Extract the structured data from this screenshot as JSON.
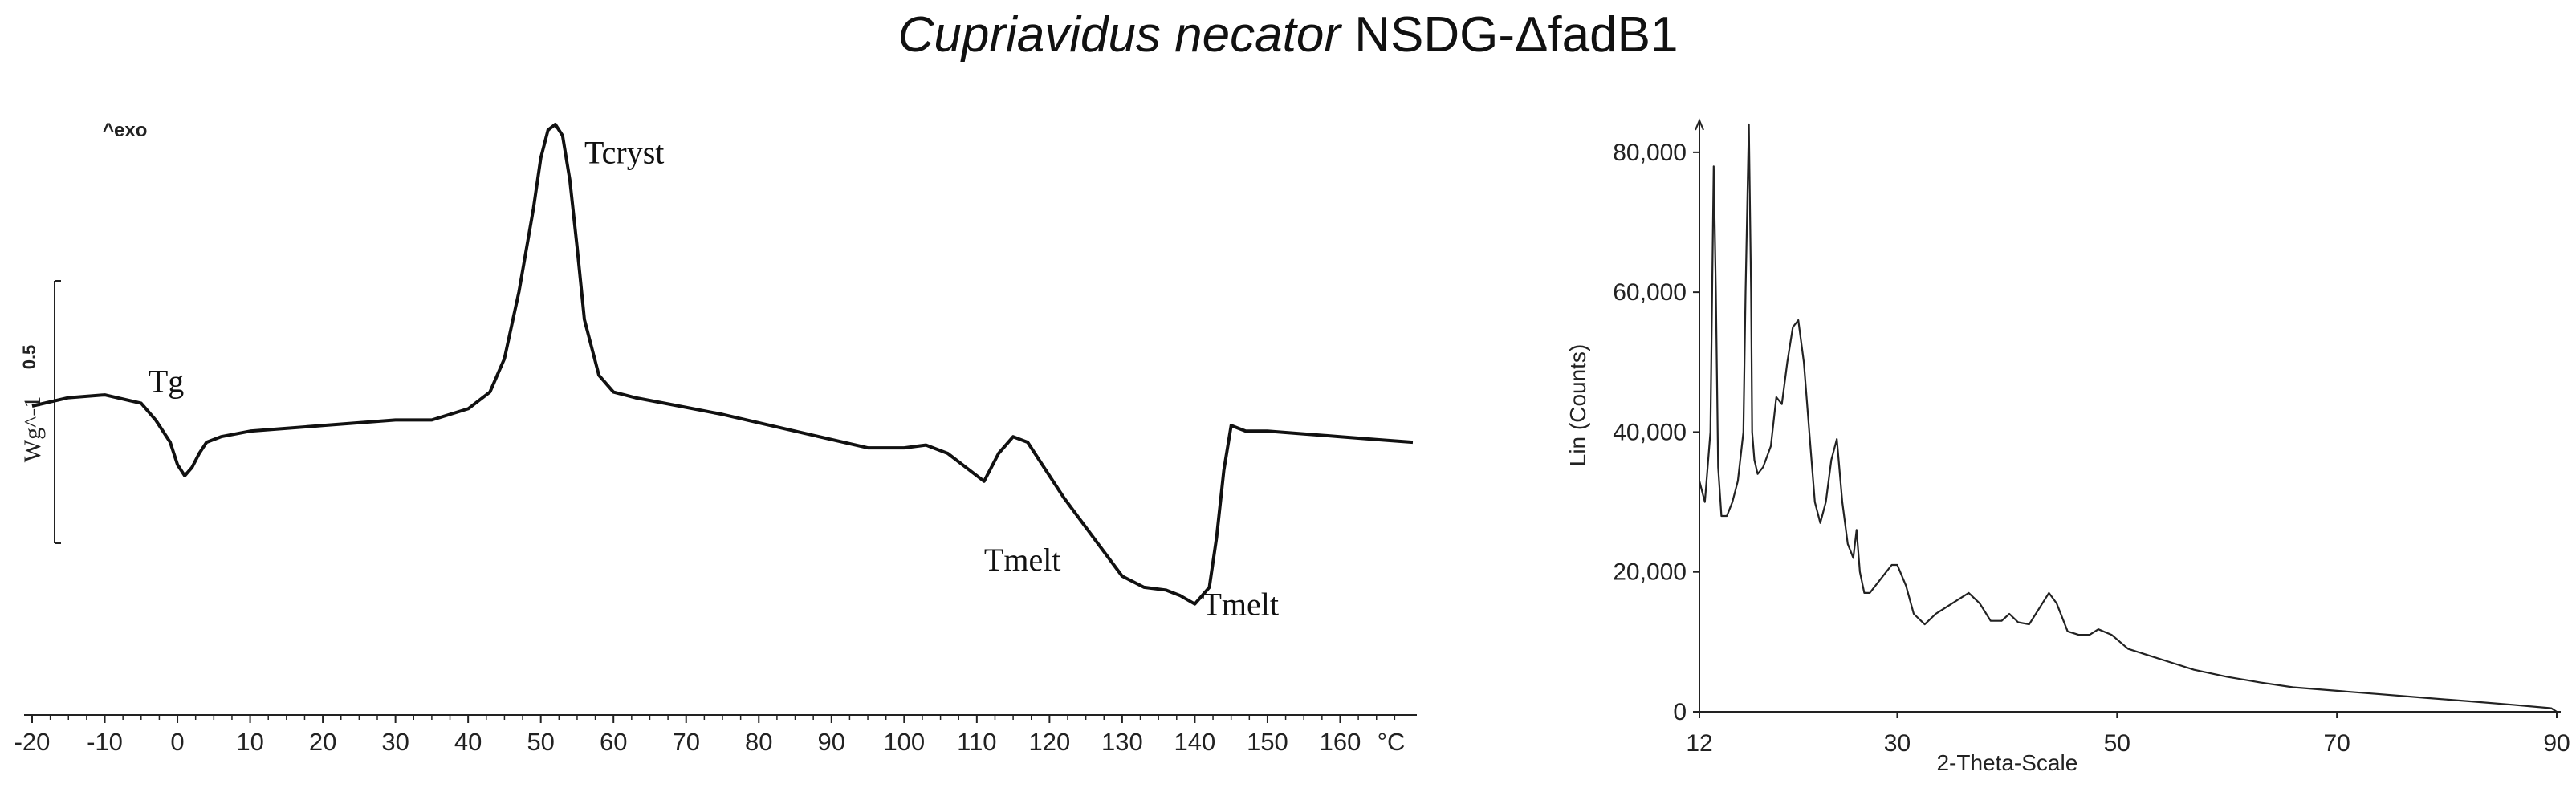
{
  "title": {
    "italic": "Cupriavidus necator",
    "rest": " NSDG-ΔfadB1"
  },
  "chart_data": [
    {
      "type": "line",
      "xlabel": "°C",
      "x_ticks": [
        -20,
        -10,
        0,
        10,
        20,
        30,
        40,
        50,
        60,
        70,
        80,
        90,
        100,
        110,
        120,
        130,
        140,
        150,
        160
      ],
      "xlim": [
        -20,
        170
      ],
      "ylabel": "Wg^-1",
      "scale_label": "0.5",
      "exo_label": "^exo",
      "annotations": [
        {
          "text": "Tg",
          "x": -4,
          "y": 0.52
        },
        {
          "text": "Tcryst",
          "x": 56,
          "y": 0.93
        },
        {
          "text": "Tmelt",
          "x": 111,
          "y": 0.2
        },
        {
          "text": "Tmelt",
          "x": 141,
          "y": 0.12
        }
      ],
      "series": [
        {
          "x": [
            -20,
            -15,
            -10,
            -5,
            -3,
            -1,
            0,
            1,
            2,
            3,
            4,
            6,
            10,
            20,
            30,
            35,
            40,
            43,
            45,
            47,
            49,
            50,
            51,
            52,
            53,
            54,
            55,
            56,
            58,
            60,
            63,
            67,
            75,
            85,
            95,
            98,
            100,
            103,
            106,
            109,
            111,
            113,
            115,
            117,
            119,
            122,
            126,
            130,
            133,
            136,
            138,
            140,
            142,
            143,
            144,
            145,
            146,
            147,
            150,
            155,
            160,
            165,
            170
          ],
          "y": [
            0.495,
            0.51,
            0.515,
            0.5,
            0.47,
            0.43,
            0.39,
            0.37,
            0.385,
            0.41,
            0.43,
            0.44,
            0.45,
            0.46,
            0.47,
            0.47,
            0.49,
            0.52,
            0.58,
            0.7,
            0.85,
            0.94,
            0.99,
            1.0,
            0.98,
            0.9,
            0.78,
            0.65,
            0.55,
            0.52,
            0.51,
            0.5,
            0.48,
            0.45,
            0.42,
            0.42,
            0.42,
            0.425,
            0.41,
            0.38,
            0.36,
            0.41,
            0.44,
            0.43,
            0.39,
            0.33,
            0.26,
            0.19,
            0.17,
            0.165,
            0.155,
            0.14,
            0.17,
            0.26,
            0.38,
            0.46,
            0.455,
            0.45,
            0.45,
            0.445,
            0.44,
            0.435,
            0.43
          ]
        }
      ]
    },
    {
      "type": "line",
      "xlabel": "2-Theta-Scale",
      "ylabel": "Lin (Counts)",
      "x_ticks": [
        12,
        30,
        50,
        70,
        90
      ],
      "y_ticks": [
        0,
        20000,
        40000,
        60000,
        80000
      ],
      "y_tick_labels": [
        "0",
        "20,000",
        "40,000",
        "60,000",
        "80,000"
      ],
      "xlim": [
        12,
        90
      ],
      "ylim": [
        0,
        84000
      ],
      "series": [
        {
          "x": [
            12,
            12.5,
            13,
            13.3,
            13.5,
            13.7,
            14.0,
            14.5,
            15.0,
            15.5,
            16.0,
            16.2,
            16.5,
            16.7,
            16.8,
            17.0,
            17.3,
            17.8,
            18.5,
            19.0,
            19.5,
            20.0,
            20.5,
            21.0,
            21.5,
            22.0,
            22.5,
            23.0,
            23.5,
            24.0,
            24.5,
            25.0,
            25.5,
            26.0,
            26.3,
            26.6,
            27.0,
            27.5,
            28.5,
            29.5,
            30.0,
            30.8,
            31.5,
            32.5,
            33.5,
            34.5,
            35.5,
            36.5,
            37.5,
            38.5,
            39.5,
            40.2,
            41.0,
            42.0,
            43.0,
            43.8,
            44.5,
            45.5,
            46.5,
            47.5,
            48.3,
            49.5,
            51.0,
            53.0,
            55.0,
            57.0,
            60.0,
            63.0,
            66.0,
            70.0,
            74.0,
            78.0,
            82.0,
            86.0,
            89.5,
            90.0
          ],
          "y": [
            33000,
            30000,
            40000,
            78000,
            60000,
            35000,
            28000,
            28000,
            30000,
            33000,
            40000,
            60000,
            84000,
            60000,
            40000,
            36000,
            34000,
            35000,
            38000,
            45000,
            44000,
            50000,
            55000,
            56000,
            50000,
            40000,
            30000,
            27000,
            30000,
            36000,
            39000,
            30000,
            24000,
            22000,
            26000,
            20000,
            17000,
            17000,
            19000,
            21000,
            21000,
            18000,
            14000,
            12500,
            14000,
            15000,
            16000,
            17000,
            15500,
            13000,
            13000,
            14000,
            12800,
            12500,
            15000,
            17000,
            15500,
            11500,
            11000,
            11000,
            11800,
            11000,
            9000,
            8000,
            7000,
            6000,
            5000,
            4200,
            3500,
            3000,
            2500,
            2000,
            1500,
            1000,
            500,
            0
          ]
        }
      ]
    }
  ]
}
